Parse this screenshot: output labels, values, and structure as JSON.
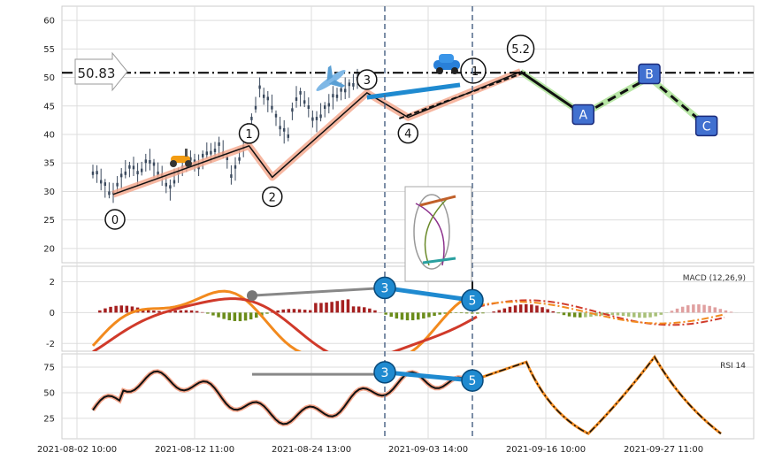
{
  "chart_data": [
    {
      "type": "candlestick",
      "panel": "price",
      "yticks": [
        20,
        25,
        30,
        35,
        40,
        45,
        50,
        55,
        60
      ],
      "ylim": [
        17.5,
        62.5
      ],
      "price_level_label": "50.83",
      "price_level": 50.83,
      "xticks": [
        "2021-08-02 10:00",
        "2021-08-12 11:00",
        "2021-08-24 13:00",
        "2021-09-03 14:00",
        "2021-09-16 10:00",
        "2021-09-27 11:00"
      ],
      "wave_points": [
        {
          "label": "0",
          "x": 0.0,
          "y": 29.5
        },
        {
          "label": "1",
          "x": 7.6,
          "y": 38.0
        },
        {
          "label": "2",
          "x": 8.9,
          "y": 32.5
        },
        {
          "label": "3",
          "x": 14.2,
          "y": 47.3
        },
        {
          "label": "4",
          "x": 16.5,
          "y": 43.0
        },
        {
          "label": "5.2",
          "x": 22.8,
          "y": 51.0
        }
      ],
      "wave_point_1_label": "1",
      "projection_points": [
        {
          "label": "A",
          "x": 26.3,
          "y": 43.5
        },
        {
          "label": "B",
          "x": 30.0,
          "y": 50.0
        },
        {
          "label": "C",
          "x": 33.2,
          "y": 41.5
        }
      ],
      "candles_close_path": [
        33.5,
        33.0,
        32.0,
        31.0,
        30.0,
        29.5,
        31.5,
        32.5,
        33.5,
        34.0,
        34.5,
        33.0,
        34.0,
        35.0,
        35.5,
        34.5,
        33.5,
        32.5,
        31.5,
        30.5,
        32.0,
        33.0,
        34.5,
        35.5,
        36.0,
        35.0,
        34.5,
        36.0,
        37.0,
        36.5,
        37.5,
        38.0,
        37.0,
        35.5,
        33.0,
        34.0,
        36.0,
        37.5,
        40.0,
        42.5,
        45.0,
        48.0,
        47.0,
        46.0,
        45.0,
        43.0,
        41.5,
        40.5,
        40.0,
        44.0,
        46.5,
        47.0,
        46.0,
        44.5,
        43.0,
        42.5,
        43.5,
        44.5,
        45.5,
        46.5,
        47.0,
        47.5,
        48.0,
        48.5,
        49.0,
        49.5
      ]
    },
    {
      "type": "line",
      "panel": "macd",
      "title": "MACD (12,26,9)",
      "yticks": [
        -2,
        0,
        2
      ],
      "ylim": [
        -2.5,
        3.0
      ],
      "wave_labels": [
        "3",
        "5"
      ]
    },
    {
      "type": "line",
      "panel": "rsi",
      "title": "RSI 14",
      "yticks": [
        25,
        50,
        75
      ],
      "ylim": [
        5,
        88
      ],
      "wave_labels": [
        "3",
        "5"
      ]
    }
  ]
}
